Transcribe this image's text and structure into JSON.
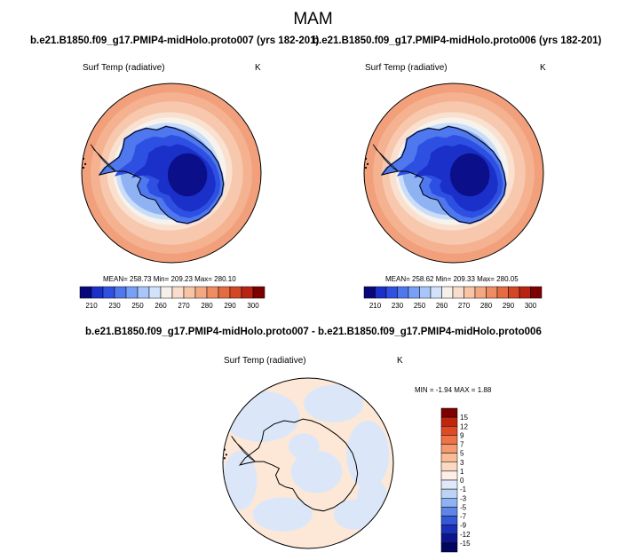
{
  "page": {
    "title": "MAM"
  },
  "panels": {
    "left": {
      "header": "b.e21.B1850.f09_g17.PMIP4-midHolo.proto007 (yrs 182-201)",
      "variable": "Surf Temp (radiative)",
      "units": "K",
      "stats": "MEAN= 258.73  Min= 209.23  Max= 280.10"
    },
    "right": {
      "header": "b.e21.B1850.f09_g17.PMIP4-midHolo.proto006 (yrs 182-201)",
      "variable": "Surf Temp (radiative)",
      "units": "K",
      "stats": "MEAN= 258.62  Min= 209.33  Max= 280.05"
    },
    "diff": {
      "header": "b.e21.B1850.f09_g17.PMIP4-midHolo.proto007 - b.e21.B1850.f09_g17.PMIP4-midHolo.proto006",
      "variable": "Surf Temp (radiative)",
      "units": "K",
      "stats": "MIN =  -1.94 MAX =   1.88"
    }
  },
  "chart_data": [
    {
      "type": "heatmap",
      "projection": "south-polar-stereographic",
      "title": "b.e21.B1850.f09_g17.PMIP4-midHolo.proto007 (yrs 182-201)",
      "variable": "Surf Temp (radiative)",
      "units": "K",
      "mean": 258.73,
      "min": 209.23,
      "max": 280.1,
      "colorbar": {
        "tick_labels": [
          "210",
          "230",
          "250",
          "260",
          "270",
          "280",
          "290",
          "300"
        ],
        "colors": [
          "#08087a",
          "#1a30c8",
          "#3050e0",
          "#4f78ee",
          "#78a0f6",
          "#a8c6fa",
          "#d2e2fb",
          "#f5f0ea",
          "#f9dccb",
          "#f7c4a6",
          "#f4a882",
          "#ee8c62",
          "#e46b42",
          "#d24826",
          "#b82412",
          "#7d0000"
        ]
      }
    },
    {
      "type": "heatmap",
      "projection": "south-polar-stereographic",
      "title": "b.e21.B1850.f09_g17.PMIP4-midHolo.proto006 (yrs 182-201)",
      "variable": "Surf Temp (radiative)",
      "units": "K",
      "mean": 258.62,
      "min": 209.33,
      "max": 280.05,
      "colorbar": {
        "tick_labels": [
          "210",
          "230",
          "250",
          "260",
          "270",
          "280",
          "290",
          "300"
        ],
        "colors": [
          "#08087a",
          "#1a30c8",
          "#3050e0",
          "#4f78ee",
          "#78a0f6",
          "#a8c6fa",
          "#d2e2fb",
          "#f5f0ea",
          "#f9dccb",
          "#f7c4a6",
          "#f4a882",
          "#ee8c62",
          "#e46b42",
          "#d24826",
          "#b82412",
          "#7d0000"
        ]
      }
    },
    {
      "type": "heatmap",
      "projection": "south-polar-stereographic",
      "title": "b.e21.B1850.f09_g17.PMIP4-midHolo.proto007 - b.e21.B1850.f09_g17.PMIP4-midHolo.proto006",
      "variable": "Surf Temp (radiative)",
      "units": "K",
      "min": -1.94,
      "max": 1.88,
      "colorbar": {
        "orientation": "vertical",
        "tick_labels": [
          "15",
          "12",
          "9",
          "7",
          "5",
          "3",
          "1",
          "0",
          "-1",
          "-3",
          "-5",
          "-7",
          "-9",
          "-12",
          "-15"
        ],
        "colors": [
          "#7d0000",
          "#c0260e",
          "#e04a22",
          "#ee7448",
          "#f59a6e",
          "#f8bc98",
          "#fad8c2",
          "#fdf0e6",
          "#dfe9f8",
          "#bcd3f6",
          "#8fb2f0",
          "#5f86e6",
          "#3458d8",
          "#1a30b8",
          "#0c148e",
          "#04065e"
        ]
      }
    }
  ]
}
